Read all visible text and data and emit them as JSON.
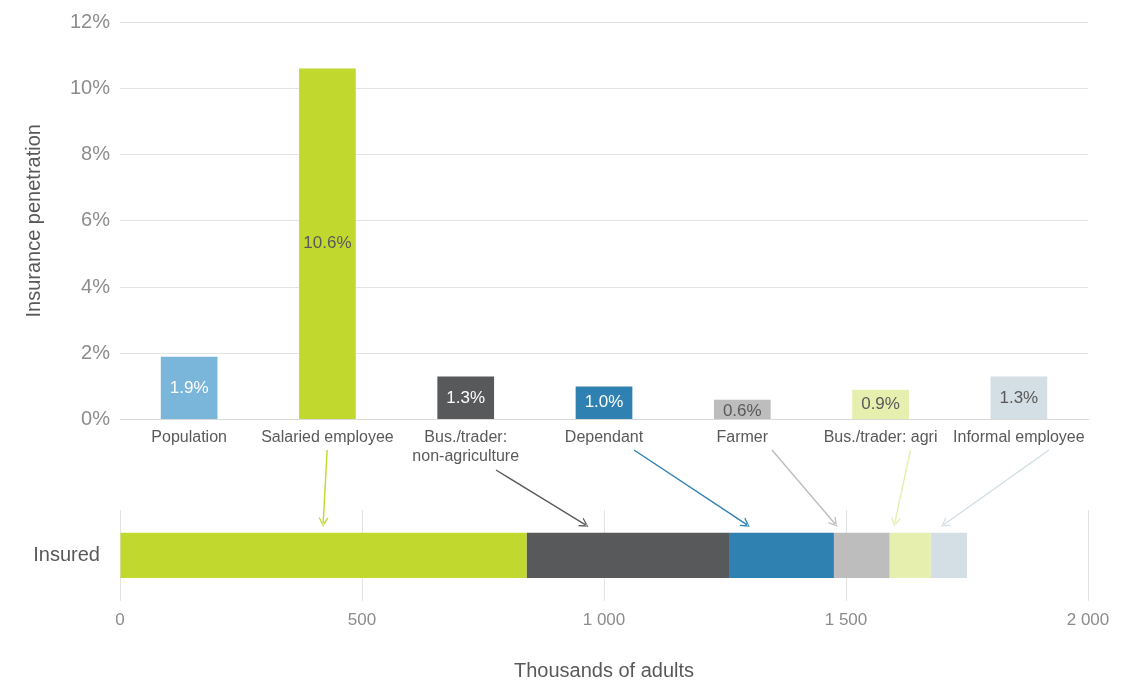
{
  "chart_data": [
    {
      "type": "bar",
      "ylabel": "Insurance penetration",
      "categories": [
        "Population",
        "Salaried employee",
        "Bus./trader: non-agriculture",
        "Dependant",
        "Farmer",
        "Bus./trader: agri",
        "Informal employee"
      ],
      "values": [
        1.9,
        10.6,
        1.3,
        1.0,
        0.6,
        0.9,
        1.3
      ],
      "value_labels": [
        "1.9%",
        "10.6%",
        "1.3%",
        "1.0%",
        "0.6%",
        "0.9%",
        "1.3%"
      ],
      "colors": [
        "#7ab5da",
        "#c1d82f",
        "#58595b",
        "#2e81b1",
        "#bdbdbd",
        "#e6efae",
        "#d3dee5"
      ],
      "ylim": [
        0,
        12
      ],
      "yticks": [
        {
          "value": 0,
          "label": "0%"
        },
        {
          "value": 2,
          "label": "2%"
        },
        {
          "value": 4,
          "label": "4%"
        },
        {
          "value": 6,
          "label": "6%"
        },
        {
          "value": 8,
          "label": "8%"
        },
        {
          "value": 10,
          "label": "10%"
        },
        {
          "value": 12,
          "label": "12%"
        }
      ],
      "grid": "y"
    },
    {
      "type": "bar",
      "orientation": "horizontal",
      "stacked": true,
      "xlabel": "Thousands of adults",
      "categories": [
        "Insured"
      ],
      "series": [
        {
          "color": "#c1d82f",
          "values": [
            840
          ]
        },
        {
          "color": "#58595b",
          "values": [
            420
          ]
        },
        {
          "color": "#2e81b1",
          "values": [
            215
          ]
        },
        {
          "color": "#bdbdbd",
          "values": [
            115
          ]
        },
        {
          "color": "#e6efae",
          "values": [
            85
          ]
        },
        {
          "color": "#d3dee5",
          "values": [
            75
          ]
        }
      ],
      "xlim": [
        0,
        2000
      ],
      "xticks": [
        0,
        500,
        {
          "value": 1000,
          "label": "1 000"
        },
        {
          "value": 1500,
          "label": "1 500"
        },
        {
          "value": 2000,
          "label": "2 000"
        }
      ],
      "grid": "x"
    }
  ]
}
